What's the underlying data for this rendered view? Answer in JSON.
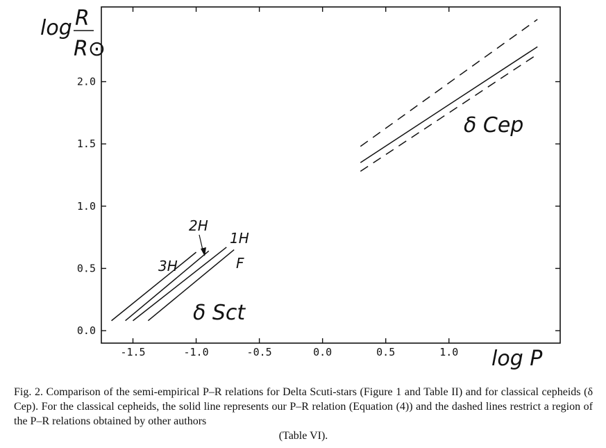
{
  "chart_data": {
    "type": "line",
    "xlabel": "log P",
    "ylabel_top": "log",
    "ylabel_num": "R",
    "ylabel_den": "R⊙",
    "xlim": [
      -1.75,
      1.88
    ],
    "ylim": [
      -0.1,
      2.6
    ],
    "x_ticks": [
      -1.5,
      -1.0,
      -0.5,
      0.0,
      0.5,
      1.0
    ],
    "x_tick_labels": [
      "-1.5",
      "-1.0",
      "-0.5",
      "0.0",
      "0.5",
      "1.0"
    ],
    "y_ticks": [
      0.0,
      0.5,
      1.0,
      1.5,
      2.0
    ],
    "y_tick_labels": [
      "0.0",
      "0.5",
      "1.0",
      "1.5",
      "2.0"
    ],
    "series": [
      {
        "name": "3H",
        "style": "solid",
        "x": [
          -1.67,
          -1.0
        ],
        "y": [
          0.08,
          0.63
        ]
      },
      {
        "name": "2H",
        "style": "solid",
        "x": [
          -1.56,
          -0.9
        ],
        "y": [
          0.08,
          0.64
        ]
      },
      {
        "name": "1H",
        "style": "solid",
        "x": [
          -1.5,
          -0.76
        ],
        "y": [
          0.08,
          0.67
        ]
      },
      {
        "name": "F",
        "style": "solid",
        "x": [
          -1.38,
          -0.7
        ],
        "y": [
          0.08,
          0.65
        ]
      },
      {
        "name": "",
        "style": "solid",
        "x": [
          0.3,
          1.7
        ],
        "y": [
          1.35,
          2.28
        ]
      },
      {
        "name": "",
        "style": "dashed",
        "x": [
          0.3,
          1.7
        ],
        "y": [
          1.48,
          2.5
        ]
      },
      {
        "name": "",
        "style": "dashed",
        "x": [
          0.3,
          1.7
        ],
        "y": [
          1.28,
          2.22
        ]
      }
    ],
    "annotations": {
      "dsct": "δ Sct",
      "dcep": "δ Cep",
      "l3h": "3H",
      "l2h": "2H",
      "l1h": "1H",
      "lf": "F"
    }
  },
  "caption": {
    "line1": "Fig. 2.   Comparison of the semi-empirical P–R relations for Delta Scuti-stars (Figure 1 and Table II) and for classical cepheids (δ Cep). For the classical cepheids, the solid line represents our P–R relation (Equation (4)) and the dashed lines restrict a region of the P–R relations obtained by other authors",
    "line2": "(Table VI)."
  }
}
